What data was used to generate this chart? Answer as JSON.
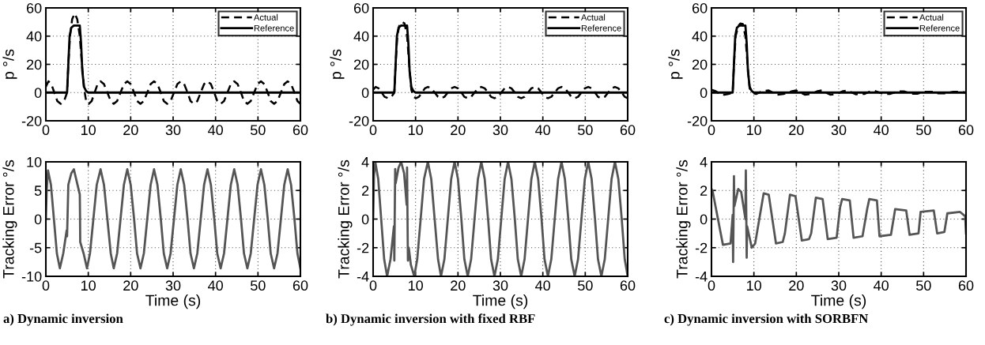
{
  "chart_data": [
    {
      "type": "line",
      "ylabel": "p °/s",
      "xlim": [
        0,
        60
      ],
      "xticks": [
        0,
        10,
        20,
        30,
        40,
        50,
        60
      ],
      "ylim": [
        -20,
        60
      ],
      "yticks": [
        -20,
        0,
        20,
        40,
        60
      ],
      "grid": true,
      "legend": "top right",
      "series": [
        {
          "name": "Actual",
          "color": "#000000",
          "line_style": "dashed",
          "x": [
            0,
            0.6,
            1.3,
            2.0,
            2.7,
            3.5,
            4.3,
            5.0,
            5.3,
            5.7,
            6.2,
            6.8,
            7.4,
            8.0,
            8.5,
            9.0,
            9.5,
            10.1,
            10.8,
            11.5,
            12.2,
            12.9,
            13.7,
            14.5,
            15.3,
            16.0,
            16.8,
            17.6,
            18.4,
            19.2,
            20.0,
            20.8,
            21.5,
            22.3,
            23.1,
            23.9,
            24.7,
            25.5,
            26.3,
            27.1,
            27.8,
            28.6,
            29.4,
            30.2,
            31.0,
            31.8,
            32.6,
            33.4,
            34.1,
            34.9,
            35.7,
            36.5,
            37.3,
            38.1,
            38.9,
            39.7,
            40.4,
            41.2,
            42.0,
            42.8,
            43.6,
            44.4,
            45.2,
            46.0,
            46.7,
            47.5,
            48.3,
            49.1,
            49.9,
            50.7,
            51.5,
            52.3,
            53.0,
            53.8,
            54.6,
            55.4,
            56.2,
            57.0,
            57.8,
            58.6,
            59.3,
            60
          ],
          "values": [
            4,
            8,
            6,
            0,
            -6,
            -8,
            -6,
            0,
            20,
            40,
            52,
            56,
            52,
            40,
            20,
            3,
            -6,
            -8,
            -6,
            0,
            6,
            8,
            6,
            0,
            -6,
            -8,
            -6,
            0,
            6,
            8,
            6,
            0,
            -6,
            -8,
            -6,
            0,
            6,
            8,
            6,
            0,
            -6,
            -8,
            -6,
            0,
            6,
            8,
            6,
            0,
            -6,
            -8,
            -6,
            0,
            6,
            8,
            6,
            0,
            -6,
            -8,
            -6,
            0,
            6,
            8,
            6,
            0,
            -6,
            -8,
            -6,
            0,
            6,
            8,
            6,
            0,
            -6,
            -8,
            -6,
            0,
            6,
            8,
            6,
            0,
            -6,
            -8
          ]
        },
        {
          "name": "Reference",
          "color": "#000000",
          "line_style": "solid",
          "x": [
            0,
            5.0,
            5.3,
            5.6,
            6.0,
            6.6,
            8.0,
            8.3,
            8.6,
            9.0,
            9.5,
            10,
            60
          ],
          "values": [
            0,
            0,
            20,
            40,
            46,
            47.5,
            47.5,
            35,
            15,
            4,
            1,
            0,
            0
          ]
        }
      ]
    },
    {
      "type": "line",
      "ylabel": "p °/s",
      "xlim": [
        0,
        60
      ],
      "xticks": [
        0,
        10,
        20,
        30,
        40,
        50,
        60
      ],
      "ylim": [
        -20,
        60
      ],
      "yticks": [
        -20,
        0,
        20,
        40,
        60
      ],
      "grid": true,
      "legend": "top right",
      "series": [
        {
          "name": "Actual",
          "color": "#000000",
          "line_style": "dashed",
          "x": [
            0,
            0.6,
            1.3,
            2.0,
            2.7,
            3.5,
            4.3,
            5.0,
            5.3,
            5.7,
            6.2,
            6.8,
            7.4,
            8.0,
            8.5,
            9.0,
            9.5,
            10.1,
            10.8,
            11.5,
            12.2,
            12.9,
            13.7,
            14.5,
            15.3,
            16.0,
            16.8,
            17.6,
            18.4,
            19.2,
            20.0,
            20.8,
            21.5,
            22.3,
            23.1,
            23.9,
            24.7,
            25.5,
            26.3,
            27.1,
            27.8,
            28.6,
            29.4,
            30.2,
            31.0,
            31.8,
            32.6,
            33.4,
            34.1,
            34.9,
            35.7,
            36.5,
            37.3,
            38.1,
            38.9,
            39.7,
            40.4,
            41.2,
            42.0,
            42.8,
            43.6,
            44.4,
            45.2,
            46.0,
            46.7,
            47.5,
            48.3,
            49.1,
            49.9,
            50.7,
            51.5,
            52.3,
            53.0,
            53.8,
            54.6,
            55.4,
            56.2,
            57.0,
            57.8,
            58.6,
            59.3,
            60
          ],
          "values": [
            2,
            4,
            3,
            0,
            -3,
            -4,
            -3,
            0,
            20,
            40,
            48,
            50,
            49,
            40,
            20,
            2,
            -3,
            -4,
            -3,
            0,
            3,
            4,
            3,
            0,
            -3,
            -4,
            -3,
            0,
            3,
            4,
            3,
            0,
            -3,
            -4,
            -3,
            0,
            3,
            4,
            3,
            0,
            -3,
            -4,
            -3,
            0,
            3,
            4,
            3,
            0,
            -3,
            -4,
            -3,
            0,
            3,
            4,
            3,
            0,
            -3,
            -4,
            -3,
            0,
            3,
            4,
            3,
            0,
            -3,
            -4,
            -3,
            0,
            3,
            4,
            3,
            0,
            -3,
            -4,
            -3,
            0,
            3,
            4,
            3,
            0,
            -3,
            -4
          ]
        },
        {
          "name": "Reference",
          "color": "#000000",
          "line_style": "solid",
          "x": [
            0,
            5.0,
            5.3,
            5.6,
            6.0,
            6.6,
            8.0,
            8.3,
            8.6,
            9.0,
            9.5,
            10,
            60
          ],
          "values": [
            0,
            0,
            20,
            40,
            46,
            47.5,
            47.5,
            35,
            15,
            4,
            1,
            0,
            0
          ]
        }
      ]
    },
    {
      "type": "line",
      "ylabel": "p °/s",
      "xlim": [
        0,
        60
      ],
      "xticks": [
        0,
        10,
        20,
        30,
        40,
        50,
        60
      ],
      "ylim": [
        -20,
        60
      ],
      "yticks": [
        -20,
        0,
        20,
        40,
        60
      ],
      "grid": true,
      "legend": "top right",
      "series": [
        {
          "name": "Actual",
          "color": "#000000",
          "line_style": "dashed",
          "x": [
            0,
            1,
            2,
            3,
            4,
            5,
            5.3,
            5.7,
            6.3,
            6.8,
            7.4,
            8.0,
            8.5,
            9.0,
            9.5,
            10.5,
            12,
            13.5,
            15.5,
            17,
            19,
            20,
            22,
            23.5,
            25,
            26,
            28,
            29.5,
            31,
            32,
            34,
            36,
            37.5,
            38.5,
            40.5,
            42,
            44,
            45.5,
            47,
            48.5,
            50.5,
            52,
            53.5,
            55,
            57,
            58.5,
            60
          ],
          "values": [
            2,
            1,
            -1,
            -1.5,
            -1,
            0,
            20,
            40,
            47,
            49,
            48.5,
            40,
            20,
            3,
            0,
            -1,
            1,
            1.5,
            -1.5,
            -1,
            1,
            1.5,
            -1.5,
            -1,
            1,
            1.5,
            -1.5,
            -1,
            1,
            1.5,
            -1.2,
            -1,
            1,
            1.2,
            -1,
            -1,
            0.8,
            0.8,
            -0.8,
            -0.8,
            0.6,
            0.6,
            -0.6,
            -0.5,
            0.5,
            0.6,
            0
          ]
        },
        {
          "name": "Reference",
          "color": "#000000",
          "line_style": "solid",
          "x": [
            0,
            5.0,
            5.3,
            5.6,
            6.0,
            6.6,
            8.0,
            8.3,
            8.6,
            9.0,
            9.5,
            10,
            60
          ],
          "values": [
            0,
            0,
            20,
            40,
            46,
            47.5,
            47.5,
            35,
            15,
            4,
            1,
            0,
            0
          ]
        }
      ]
    },
    {
      "type": "line",
      "ylabel": "Tracking Error °/s",
      "xlabel": "Time (s)",
      "xlim": [
        0,
        60
      ],
      "xticks": [
        0,
        10,
        20,
        30,
        40,
        50,
        60
      ],
      "ylim": [
        -10,
        10
      ],
      "yticks": [
        -10,
        -5,
        0,
        5,
        10
      ],
      "grid": true,
      "annotations": [
        "a) Dynamic inversion"
      ],
      "series": [
        {
          "color": "#555555",
          "line_style": "solid",
          "x": [
            0,
            0.2,
            0.5,
            1.2,
            1.9,
            2.6,
            3.3,
            4.1,
            4.9,
            5.0,
            5.1,
            5.3,
            6.0,
            6.6,
            7.3,
            8.0,
            8.05,
            8.1,
            8.9,
            9.7,
            10.4,
            11.2,
            12.0,
            12.9,
            13.7,
            14.5,
            15.3,
            16.0,
            16.8,
            17.6,
            18.4,
            19.2,
            20.0,
            20.8,
            21.5,
            22.3,
            23.1,
            23.9,
            24.7,
            25.5,
            26.3,
            27.1,
            27.8,
            28.6,
            29.4,
            30.2,
            31.0,
            31.8,
            32.6,
            33.4,
            34.1,
            34.9,
            35.7,
            36.5,
            37.3,
            38.1,
            38.9,
            39.7,
            40.4,
            41.2,
            42.0,
            42.8,
            43.6,
            44.4,
            45.2,
            46.0,
            46.7,
            47.5,
            48.3,
            49.1,
            49.9,
            50.7,
            51.5,
            52.3,
            53.0,
            53.8,
            54.6,
            55.4,
            56.2,
            57.0,
            57.8,
            58.6,
            59.3,
            60
          ],
          "values": [
            0,
            5,
            8.5,
            6,
            0,
            -6,
            -8.6,
            -6,
            -2,
            -3,
            0,
            6,
            8,
            8.7,
            6.5,
            4.3,
            1,
            -4,
            -6,
            -8.6,
            -6,
            0,
            6,
            8.7,
            6,
            0,
            -6,
            -8.6,
            -6,
            0,
            6,
            8.7,
            6,
            0,
            -6,
            -8.6,
            -6,
            0,
            6,
            8.7,
            6,
            0,
            -6,
            -8.6,
            -6,
            0,
            6,
            8.7,
            6,
            0,
            -6,
            -8.6,
            -6,
            0,
            6,
            8.7,
            6,
            0,
            -6,
            -8.6,
            -6,
            0,
            6,
            8.7,
            6,
            0,
            -6,
            -8.6,
            -6,
            0,
            6,
            8.7,
            6,
            0,
            -6,
            -8.6,
            -6,
            0,
            6,
            8.7,
            6,
            0,
            -6,
            -8.6
          ]
        }
      ]
    },
    {
      "type": "line",
      "ylabel": "Tracking Error °/s",
      "xlabel": "Time (s)",
      "xlim": [
        0,
        60
      ],
      "xticks": [
        0,
        10,
        20,
        30,
        40,
        50,
        60
      ],
      "ylim": [
        -4,
        4
      ],
      "yticks": [
        -4,
        -2,
        0,
        2,
        4
      ],
      "grid": true,
      "annotations": [
        "b) Dynamic inversion with fixed RBF"
      ],
      "series": [
        {
          "color": "#555555",
          "line_style": "solid",
          "x": [
            0,
            0.2,
            0.5,
            1.2,
            1.9,
            2.6,
            3.3,
            4.1,
            4.9,
            5.0,
            5.1,
            5.2,
            5.3,
            6.0,
            6.6,
            7.3,
            7.9,
            8.0,
            8.1,
            8.2,
            8.4,
            8.9,
            9.7,
            10.4,
            11.2,
            12.0,
            12.9,
            13.7,
            14.5,
            15.3,
            16.0,
            16.8,
            17.6,
            18.4,
            19.2,
            20.0,
            20.8,
            21.5,
            22.3,
            23.1,
            23.9,
            24.7,
            25.5,
            26.3,
            27.1,
            27.8,
            28.6,
            29.4,
            30.2,
            31.0,
            31.8,
            32.6,
            33.4,
            34.1,
            34.9,
            35.7,
            36.5,
            37.3,
            38.1,
            38.9,
            39.7,
            40.4,
            41.2,
            42.0,
            42.8,
            43.6,
            44.4,
            45.2,
            46.0,
            46.7,
            47.5,
            48.3,
            49.1,
            49.9,
            50.7,
            51.5,
            52.3,
            53.0,
            53.8,
            54.6,
            55.4,
            56.2,
            57.0,
            57.8,
            58.6,
            59.3,
            60
          ],
          "values": [
            0,
            3,
            4,
            2.8,
            0,
            -2.8,
            -4,
            -2.8,
            -0.5,
            -2.9,
            0.5,
            3.5,
            2.5,
            3.6,
            4,
            3.2,
            1,
            3.6,
            0.2,
            -2.9,
            -2,
            -3.2,
            -4,
            -2.8,
            0,
            2.8,
            4,
            2.8,
            0,
            -2.8,
            -4,
            -2.8,
            0,
            2.8,
            4,
            2.8,
            0,
            -2.8,
            -4,
            -2.8,
            0,
            2.8,
            4,
            2.8,
            0,
            -2.8,
            -4,
            -2.8,
            0,
            2.8,
            4,
            2.8,
            0,
            -2.8,
            -4,
            -2.8,
            0,
            2.8,
            4,
            2.8,
            0,
            -2.8,
            -4,
            -2.8,
            0,
            2.8,
            4,
            2.8,
            0,
            -2.8,
            -4,
            -2.8,
            0,
            2.8,
            4,
            2.8,
            0,
            -2.8,
            -4,
            -2.8,
            0,
            2.8,
            4,
            2.8,
            0,
            -2.8,
            -4
          ]
        }
      ]
    },
    {
      "type": "line",
      "ylabel": "Tracking Error °/s",
      "xlabel": "Time (s)",
      "xlim": [
        0,
        60
      ],
      "xticks": [
        0,
        10,
        20,
        30,
        40,
        50,
        60
      ],
      "ylim": [
        -4,
        4
      ],
      "yticks": [
        -4,
        -2,
        0,
        2,
        4
      ],
      "grid": true,
      "annotations": [
        "c) Dynamic inversion with SORBFN"
      ],
      "series": [
        {
          "color": "#555555",
          "line_style": "solid",
          "x": [
            0,
            0.3,
            2.7,
            4.5,
            5.0,
            5.1,
            5.3,
            5.4,
            6.3,
            7.0,
            8.0,
            8.1,
            8.3,
            8.4,
            9.5,
            10.3,
            12.3,
            13.5,
            15.2,
            16.8,
            17.3,
            18.5,
            19.8,
            21.3,
            23,
            23.5,
            24.6,
            26.2,
            27.4,
            29.5,
            30.3,
            30.8,
            32.6,
            33.5,
            35.6,
            36.7,
            37.2,
            39,
            39.6,
            42.3,
            43.3,
            45.9,
            46.7,
            48.8,
            49.3,
            52.4,
            53.2,
            54.9,
            55.6,
            58.6,
            59.8,
            60
          ],
          "values": [
            2.1,
            1.9,
            -1.8,
            -1.7,
            0.3,
            -3.0,
            3.0,
            0.9,
            2.1,
            1.9,
            0,
            3.4,
            -2.7,
            -0.5,
            -2.0,
            -1.7,
            1.8,
            1.7,
            -1.7,
            -1.6,
            -1.0,
            1.7,
            1.6,
            -1.5,
            -1.4,
            -1.0,
            1.5,
            1.4,
            -1.4,
            -1.3,
            0.8,
            1.4,
            1.3,
            -1.3,
            -1.2,
            0.7,
            1.4,
            1.3,
            -1.2,
            -1.1,
            0.7,
            0.6,
            -1.1,
            -1.0,
            0.5,
            0.6,
            -1.0,
            -0.9,
            0.4,
            0.5,
            0.2,
            -1.0
          ]
        }
      ]
    }
  ]
}
